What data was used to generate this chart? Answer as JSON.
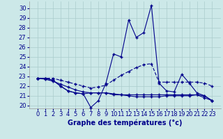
{
  "xlabel": "Graphe des températures (°c)",
  "hours": [
    0,
    1,
    2,
    3,
    4,
    5,
    6,
    7,
    8,
    9,
    10,
    11,
    12,
    13,
    14,
    15,
    16,
    17,
    18,
    19,
    20,
    21,
    22,
    23
  ],
  "line_spike": [
    22.8,
    22.8,
    22.6,
    22.0,
    21.5,
    21.3,
    21.2,
    19.8,
    20.5,
    22.3,
    25.3,
    25.0,
    28.8,
    27.0,
    27.5,
    30.3,
    22.3,
    21.5,
    21.4,
    23.2,
    22.3,
    21.3,
    21.0,
    20.5
  ],
  "line_dashed": [
    22.8,
    22.8,
    22.8,
    22.6,
    22.4,
    22.2,
    22.0,
    21.8,
    21.9,
    22.1,
    22.6,
    23.1,
    23.5,
    23.9,
    24.2,
    24.3,
    22.4,
    22.4,
    22.4,
    22.4,
    22.4,
    22.4,
    22.3,
    22.0
  ],
  "line_flat1": [
    22.8,
    22.8,
    22.6,
    22.0,
    21.5,
    21.3,
    21.2,
    21.3,
    21.3,
    21.3,
    21.1,
    21.1,
    21.1,
    21.1,
    21.1,
    21.1,
    21.1,
    21.1,
    21.1,
    21.1,
    21.1,
    21.1,
    21.0,
    20.5
  ],
  "line_flat2": [
    22.8,
    22.7,
    22.5,
    22.2,
    21.9,
    21.6,
    21.4,
    21.3,
    21.3,
    21.3,
    21.2,
    21.1,
    21.0,
    20.9,
    20.9,
    20.9,
    20.9,
    21.0,
    21.0,
    21.0,
    21.0,
    21.1,
    20.8,
    20.5
  ],
  "bg_color": "#cce8e8",
  "grid_color": "#aacccc",
  "line_color": "#00008b",
  "ylim_min": 19.7,
  "ylim_max": 30.7,
  "yticks": [
    20,
    21,
    22,
    23,
    24,
    25,
    26,
    27,
    28,
    29,
    30
  ],
  "xlabel_fontsize": 7,
  "tick_fontsize": 6
}
